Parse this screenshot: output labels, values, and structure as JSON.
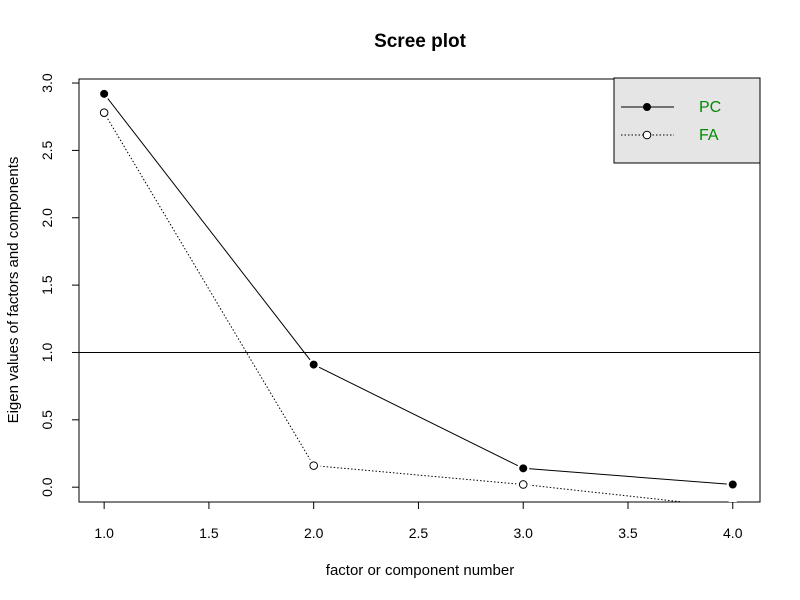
{
  "chart_data": {
    "type": "line",
    "title": "Scree plot",
    "xlabel": "factor or component number",
    "ylabel": "Eigen values of factors and components",
    "xlim": [
      0.88,
      4.13
    ],
    "ylim": [
      -0.11,
      3.03
    ],
    "x_ticks": [
      "1.0",
      "1.5",
      "2.0",
      "2.5",
      "3.0",
      "3.5",
      "4.0"
    ],
    "y_ticks": [
      "0.0",
      "0.5",
      "1.0",
      "1.5",
      "2.0",
      "2.5",
      "3.0"
    ],
    "reference_line": 1.0,
    "grid": false,
    "legend_position": "top-right",
    "legend_text_color": "#008B00",
    "legend_background": "#e5e5e5",
    "x": [
      1,
      2,
      3,
      4
    ],
    "series": [
      {
        "name": "PC",
        "values": [
          2.92,
          0.91,
          0.14,
          0.02
        ],
        "line_style": "solid",
        "marker": "filled-circle",
        "color": "#000000"
      },
      {
        "name": "FA",
        "values": [
          2.78,
          0.16,
          0.02,
          -0.15
        ],
        "line_style": "dotted",
        "marker": "open-circle",
        "color": "#000000"
      }
    ]
  }
}
